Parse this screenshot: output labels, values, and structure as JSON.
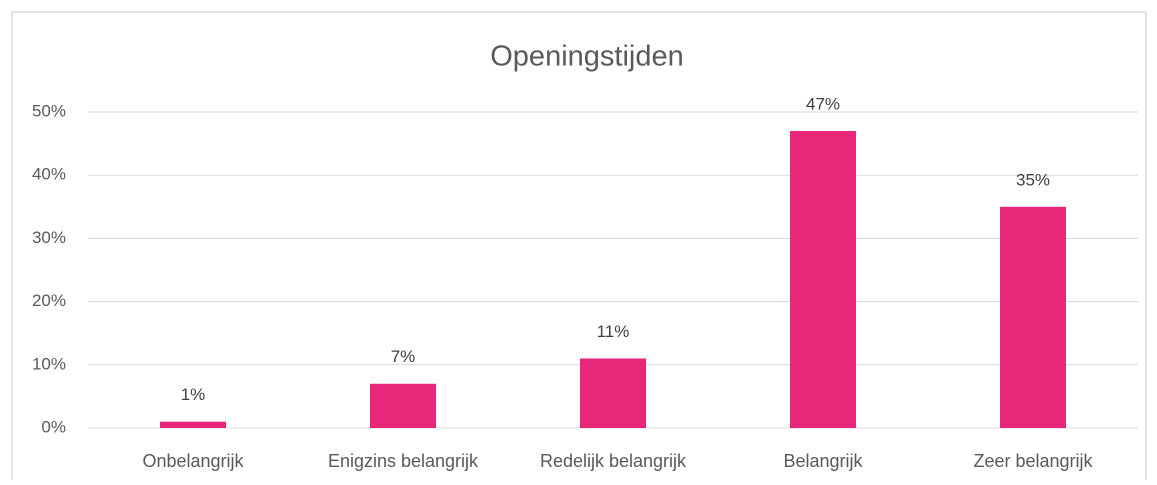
{
  "chart_data": {
    "type": "bar",
    "title": "Openingstijden",
    "categories": [
      "Onbelangrijk",
      "Enigzins belangrijk",
      "Redelijk belangrijk",
      "Belangrijk",
      "Zeer belangrijk"
    ],
    "values": [
      1,
      7,
      11,
      47,
      35
    ],
    "value_labels": [
      "1%",
      "7%",
      "11%",
      "47%",
      "35%"
    ],
    "color": "#e8267a",
    "ylim": [
      0,
      50
    ],
    "yticks": [
      {
        "value": 0,
        "label": "0%"
      },
      {
        "value": 10,
        "label": "10%"
      },
      {
        "value": 20,
        "label": "20%"
      },
      {
        "value": 30,
        "label": "30%"
      },
      {
        "value": 40,
        "label": "40%"
      },
      {
        "value": 50,
        "label": "50%"
      }
    ],
    "grid": true
  }
}
